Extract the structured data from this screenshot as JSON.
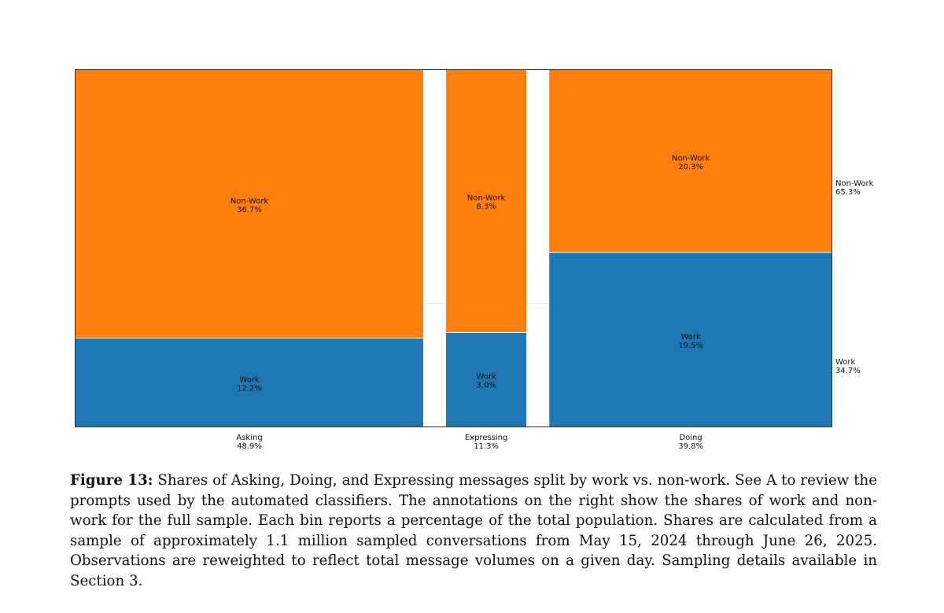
{
  "chart_data": {
    "type": "mosaic",
    "categories": [
      {
        "name": "Asking",
        "share": "48.9%",
        "share_value": 48.9
      },
      {
        "name": "Expressing",
        "share": "11.3%",
        "share_value": 11.3
      },
      {
        "name": "Doing",
        "share": "39.8%",
        "share_value": 39.8
      }
    ],
    "series": [
      {
        "name": "Work",
        "color": "#1f77b4",
        "values": [
          "12.2%",
          "3.0%",
          "19.5%"
        ],
        "numeric": [
          12.2,
          3.0,
          19.5
        ],
        "total": "34.7%"
      },
      {
        "name": "Non-Work",
        "color": "#ff7f0e",
        "values": [
          "36.7%",
          "8.3%",
          "20.3%"
        ],
        "numeric": [
          36.7,
          8.3,
          20.3
        ],
        "total": "65.3%"
      }
    ]
  },
  "caption": {
    "label": "Figure 13:",
    "text": "Shares of Asking, Doing, and Expressing messages split by work vs. non-work. See A to review the prompts used by the automated classifiers. The annotations on the right show the shares of work and non-work for the full sample. Each bin reports a percentage of the total population. Shares are calculated from a sample of approximately 1.1 million sampled conversations from May 15, 2024 through June 26, 2025. Observations are reweighted to reflect total message volumes on a given day. Sampling details available in Section 3."
  }
}
